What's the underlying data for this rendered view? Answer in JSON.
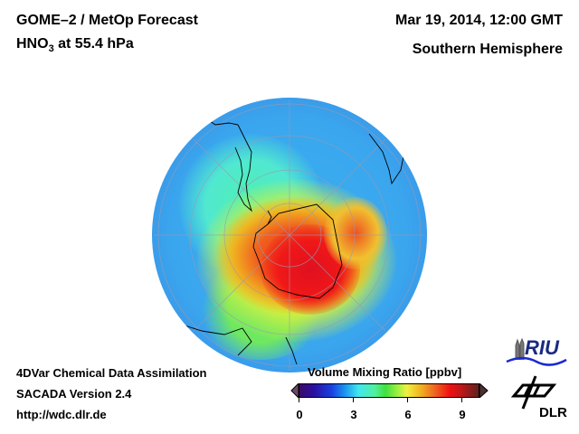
{
  "header": {
    "title_line1": "GOME–2 / MetOp Forecast",
    "title_line2_prefix": "HNO",
    "title_line2_sub": "3",
    "title_line2_suffix": " at 55.4 hPa",
    "date": "Mar 19, 2014, 12:00 GMT",
    "region": "Southern Hemisphere"
  },
  "footer": {
    "line1": "4DVar Chemical Data Assimilation",
    "line2": "SACADA Version 2.4",
    "line3": "http://wdc.dlr.de"
  },
  "colorbar": {
    "label": "Volume Mixing Ratio [ppbv]",
    "ticks": [
      "0",
      "3",
      "6",
      "9"
    ],
    "range": [
      0,
      10
    ]
  },
  "logos": {
    "riu": "RIU",
    "dlr": "DLR"
  }
}
